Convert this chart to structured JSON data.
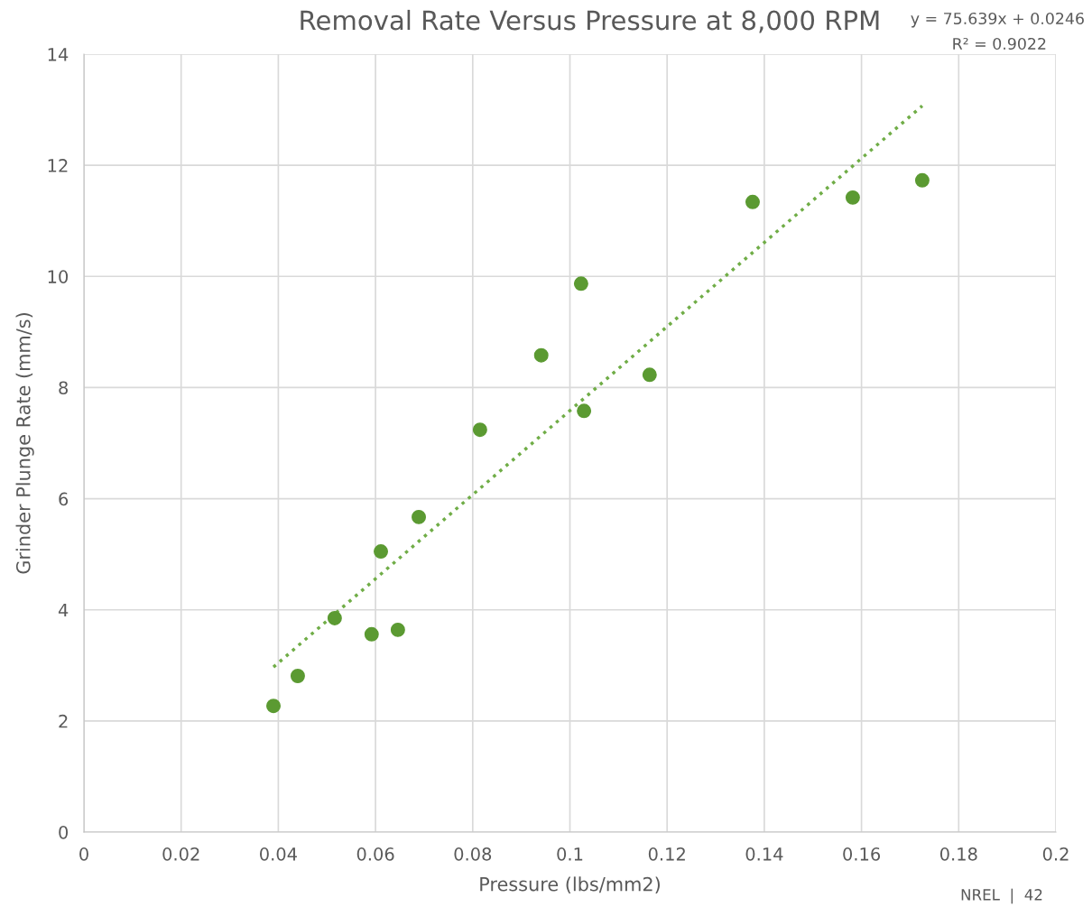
{
  "chart_data": {
    "type": "scatter",
    "title": "Removal Rate Versus Pressure at 8,000 RPM",
    "xlabel": "Pressure (lbs/mm2)",
    "ylabel": "Grinder Plunge Rate (mm/s)",
    "x": [
      0.039,
      0.044,
      0.0516,
      0.0592,
      0.0611,
      0.0646,
      0.0689,
      0.0815,
      0.0941,
      0.1023,
      0.1029,
      0.1164,
      0.1376,
      0.1582,
      0.1725
    ],
    "series": [
      {
        "color": "#5b9a32",
        "marker": "circle",
        "values": [
          2.27,
          2.81,
          3.85,
          3.56,
          5.05,
          3.64,
          5.67,
          7.24,
          8.58,
          9.87,
          7.58,
          8.23,
          11.34,
          11.42,
          11.73
        ]
      },
      {
        "type": "line",
        "color": "#70ad47",
        "line_style": "dotted",
        "marker": "none",
        "x": [
          0.039,
          0.1725
        ],
        "values": [
          2.97,
          13.07
        ]
      }
    ],
    "xlim": [
      0,
      0.2
    ],
    "xticks": [
      0,
      0.02,
      0.04,
      0.06,
      0.08,
      0.1,
      0.12,
      0.14,
      0.16,
      0.18,
      0.2
    ],
    "ylim": [
      0,
      14
    ],
    "yticks": [
      0,
      2,
      4,
      6,
      8,
      10,
      12,
      14
    ],
    "grid": true,
    "legend": false,
    "annotations": [
      "y = 75.639x + 0.0246",
      "R² = 0.9022",
      "NREL  |  42"
    ]
  }
}
